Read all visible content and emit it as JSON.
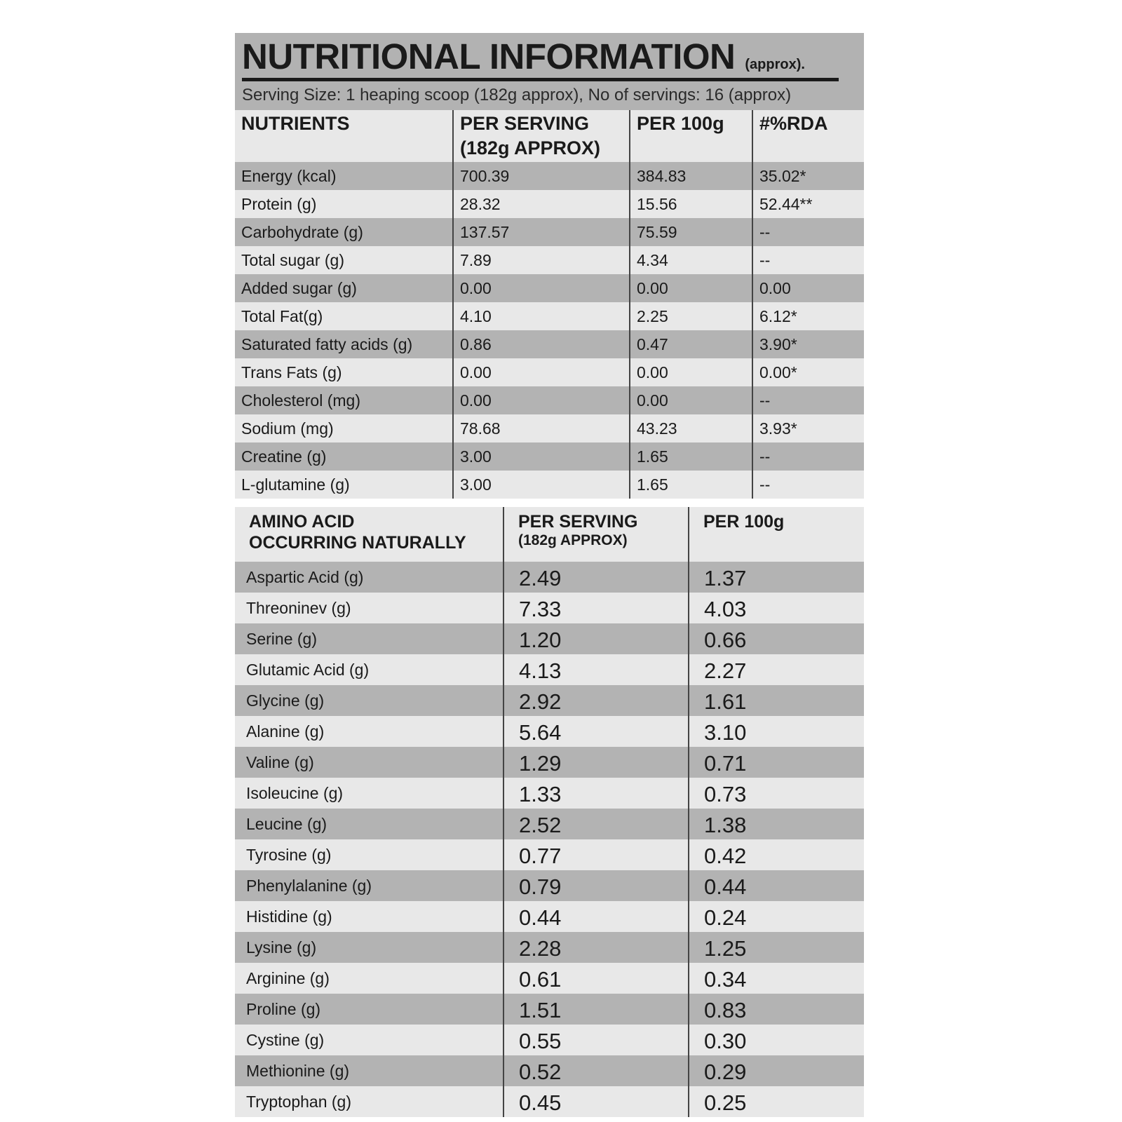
{
  "header": {
    "title": "NUTRITIONAL INFORMATION",
    "title_suffix": "(approx).",
    "serving": "Serving Size: 1 heaping scoop (182g approx), No of servings: 16 (approx)"
  },
  "colors": {
    "dark_row": "#b3b3b3",
    "light_row": "#e8e8e8",
    "text": "#1a1a1a"
  },
  "nutrients": {
    "headers": [
      "NUTRIENTS",
      "PER SERVING",
      "(182g  APPROX)",
      "PER 100g",
      "#%RDA"
    ],
    "rows": [
      [
        "Energy (kcal)",
        "700.39",
        "384.83",
        "35.02*"
      ],
      [
        "Protein (g)",
        "28.32",
        "15.56",
        "52.44**"
      ],
      [
        "Carbohydrate (g)",
        "137.57",
        "75.59",
        "--"
      ],
      [
        "Total sugar (g)",
        "7.89",
        "4.34",
        "--"
      ],
      [
        "Added sugar (g)",
        "0.00",
        "0.00",
        "0.00"
      ],
      [
        "Total Fat(g)",
        "4.10",
        "2.25",
        "6.12*"
      ],
      [
        "Saturated fatty acids (g)",
        "0.86",
        "0.47",
        "3.90*"
      ],
      [
        "Trans Fats (g)",
        "0.00",
        "0.00",
        "0.00*"
      ],
      [
        "Cholesterol (mg)",
        "0.00",
        "0.00",
        "--"
      ],
      [
        "Sodium (mg)",
        "78.68",
        "43.23",
        "3.93*"
      ],
      [
        "Creatine (g)",
        "3.00",
        "1.65",
        "--"
      ],
      [
        "L-glutamine (g)",
        "3.00",
        "1.65",
        "--"
      ]
    ]
  },
  "amino": {
    "headers": [
      "AMINO ACID",
      "OCCURRING NATURALLY",
      "PER SERVING",
      "(182g  APPROX)",
      "PER 100g"
    ],
    "rows": [
      [
        "Aspartic Acid (g)",
        "2.49",
        "1.37"
      ],
      [
        "Threoninev (g)",
        "7.33",
        "4.03"
      ],
      [
        "Serine (g)",
        "1.20",
        "0.66"
      ],
      [
        "Glutamic Acid (g)",
        "4.13",
        "2.27"
      ],
      [
        "Glycine (g)",
        "2.92",
        "1.61"
      ],
      [
        "Alanine (g)",
        "5.64",
        "3.10"
      ],
      [
        "Valine (g)",
        "1.29",
        "0.71"
      ],
      [
        "Isoleucine (g)",
        "1.33",
        "0.73"
      ],
      [
        "Leucine (g)",
        "2.52",
        "1.38"
      ],
      [
        "Tyrosine (g)",
        "0.77",
        "0.42"
      ],
      [
        "Phenylalanine (g)",
        "0.79",
        "0.44"
      ],
      [
        "Histidine (g)",
        "0.44",
        "0.24"
      ],
      [
        "Lysine (g)",
        "2.28",
        "1.25"
      ],
      [
        "Arginine (g)",
        "0.61",
        "0.34"
      ],
      [
        "Proline (g)",
        "1.51",
        "0.83"
      ],
      [
        "Cystine (g)",
        "0.55",
        "0.30"
      ],
      [
        "Methionine (g)",
        "0.52",
        "0.29"
      ],
      [
        "Tryptophan (g)",
        "0.45",
        "0.25"
      ]
    ]
  }
}
